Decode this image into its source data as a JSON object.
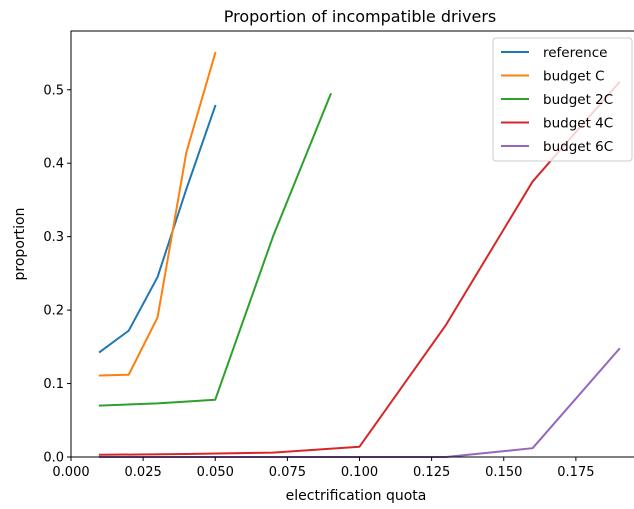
{
  "chart_data": {
    "type": "line",
    "title": "Proportion of incompatible drivers",
    "xlabel": "electrification quota",
    "ylabel": "proportion",
    "xlim": [
      0.0,
      0.2
    ],
    "ylim": [
      0.0,
      0.58
    ],
    "xticks": [
      "0.000",
      "0.025",
      "0.050",
      "0.075",
      "0.100",
      "0.125",
      "0.150",
      "0.175"
    ],
    "xtick_values": [
      0.0,
      0.025,
      0.05,
      0.075,
      0.1,
      0.125,
      0.15,
      0.175
    ],
    "yticks": [
      "0.0",
      "0.1",
      "0.2",
      "0.3",
      "0.4",
      "0.5"
    ],
    "ytick_values": [
      0.0,
      0.1,
      0.2,
      0.3,
      0.4,
      0.5
    ],
    "grid": false,
    "legend_position": "top-right",
    "series": [
      {
        "name": "reference",
        "color": "#1f77b4",
        "x": [
          0.01,
          0.02,
          0.03,
          0.04,
          0.05
        ],
        "y": [
          0.143,
          0.172,
          0.245,
          0.365,
          0.478
        ]
      },
      {
        "name": "budget C",
        "color": "#ff7f0e",
        "x": [
          0.01,
          0.02,
          0.03,
          0.04,
          0.05
        ],
        "y": [
          0.111,
          0.112,
          0.19,
          0.415,
          0.55
        ]
      },
      {
        "name": "budget 2C",
        "color": "#2ca02c",
        "x": [
          0.01,
          0.03,
          0.05,
          0.07,
          0.09
        ],
        "y": [
          0.07,
          0.073,
          0.078,
          0.3,
          0.494
        ]
      },
      {
        "name": "budget 4C",
        "color": "#d62728",
        "x": [
          0.01,
          0.04,
          0.07,
          0.1,
          0.13,
          0.16,
          0.19
        ],
        "y": [
          0.003,
          0.004,
          0.006,
          0.014,
          0.18,
          0.375,
          0.51
        ]
      },
      {
        "name": "budget 6C",
        "color": "#9467bd",
        "x": [
          0.01,
          0.04,
          0.07,
          0.1,
          0.13,
          0.16,
          0.19
        ],
        "y": [
          0.0,
          0.0,
          0.0,
          0.0,
          0.0,
          0.012,
          0.147
        ]
      }
    ]
  }
}
